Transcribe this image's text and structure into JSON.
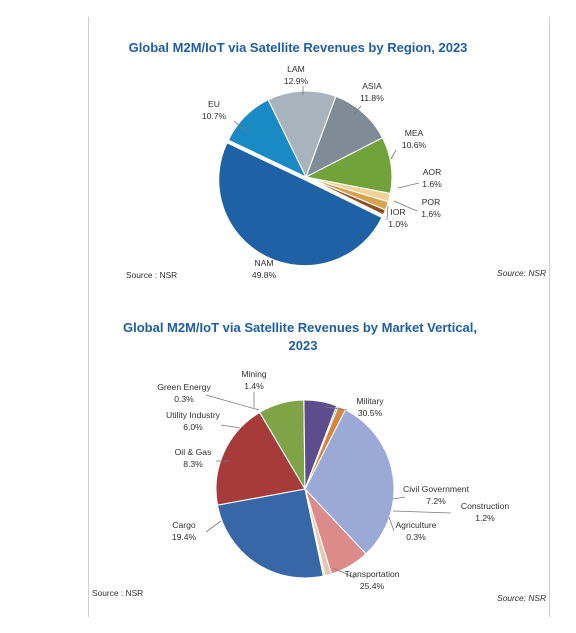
{
  "chart_data": [
    {
      "type": "pie",
      "title": "Global M2M/IoT via Satellite Revenues by Region, 2023",
      "slices": [
        {
          "label": "NAM",
          "value_label": "49.8%",
          "value": 49.8,
          "color": "#1e62a5"
        },
        {
          "label": "EU",
          "value_label": "10.7%",
          "value": 10.7,
          "color": "#198ac3"
        },
        {
          "label": "LAM",
          "value_label": "12.9%",
          "value": 12.9,
          "color": "#a8b3bd"
        },
        {
          "label": "ASIA",
          "value_label": "11.8%",
          "value": 11.8,
          "color": "#7f8b97"
        },
        {
          "label": "MEA",
          "value_label": "10.6%",
          "value": 10.6,
          "color": "#72a33a"
        },
        {
          "label": "AOR",
          "value_label": "1.6%",
          "value": 1.6,
          "color": "#f2d397"
        },
        {
          "label": "POR",
          "value_label": "1.6%",
          "value": 1.6,
          "color": "#d6a24d"
        },
        {
          "label": "IOR",
          "value_label": "1.0%",
          "value": 1.0,
          "color": "#8f4f1e"
        }
      ],
      "source_left": "Source : NSR",
      "source_right": "Source: NSR"
    },
    {
      "type": "pie",
      "title": "Global M2M/IoT via Satellite Revenues by Market Vertical, 2023",
      "slices": [
        {
          "label": "Military",
          "value_label": "30.5%",
          "value": 30.5,
          "color": "#9ba9d6"
        },
        {
          "label": "Civil Government",
          "value_label": "7.2%",
          "value": 7.2,
          "color": "#dc8a8a"
        },
        {
          "label": "Construction",
          "value_label": "1.2%",
          "value": 1.2,
          "color": "#e7c7b0"
        },
        {
          "label": "Agriculture",
          "value_label": "0.3%",
          "value": 0.3,
          "color": "#b7cf8b"
        },
        {
          "label": "Transportation",
          "value_label": "25.4%",
          "value": 25.4,
          "color": "#3767a7"
        },
        {
          "label": "Cargo",
          "value_label": "19.4%",
          "value": 19.4,
          "color": "#a73b3a"
        },
        {
          "label": "Oil & Gas",
          "value_label": "8.3%",
          "value": 8.3,
          "color": "#7fa447"
        },
        {
          "label": "Utility Industry",
          "value_label": "6.0%",
          "value": 6.0,
          "color": "#5e4d8d"
        },
        {
          "label": "Green Energy",
          "value_label": "0.3%",
          "value": 0.3,
          "color": "#48a4b8"
        },
        {
          "label": "Mining",
          "value_label": "1.4%",
          "value": 1.4,
          "color": "#d8843a"
        }
      ],
      "source_left": "Source : NSR",
      "source_right": "Source: NSR"
    }
  ]
}
